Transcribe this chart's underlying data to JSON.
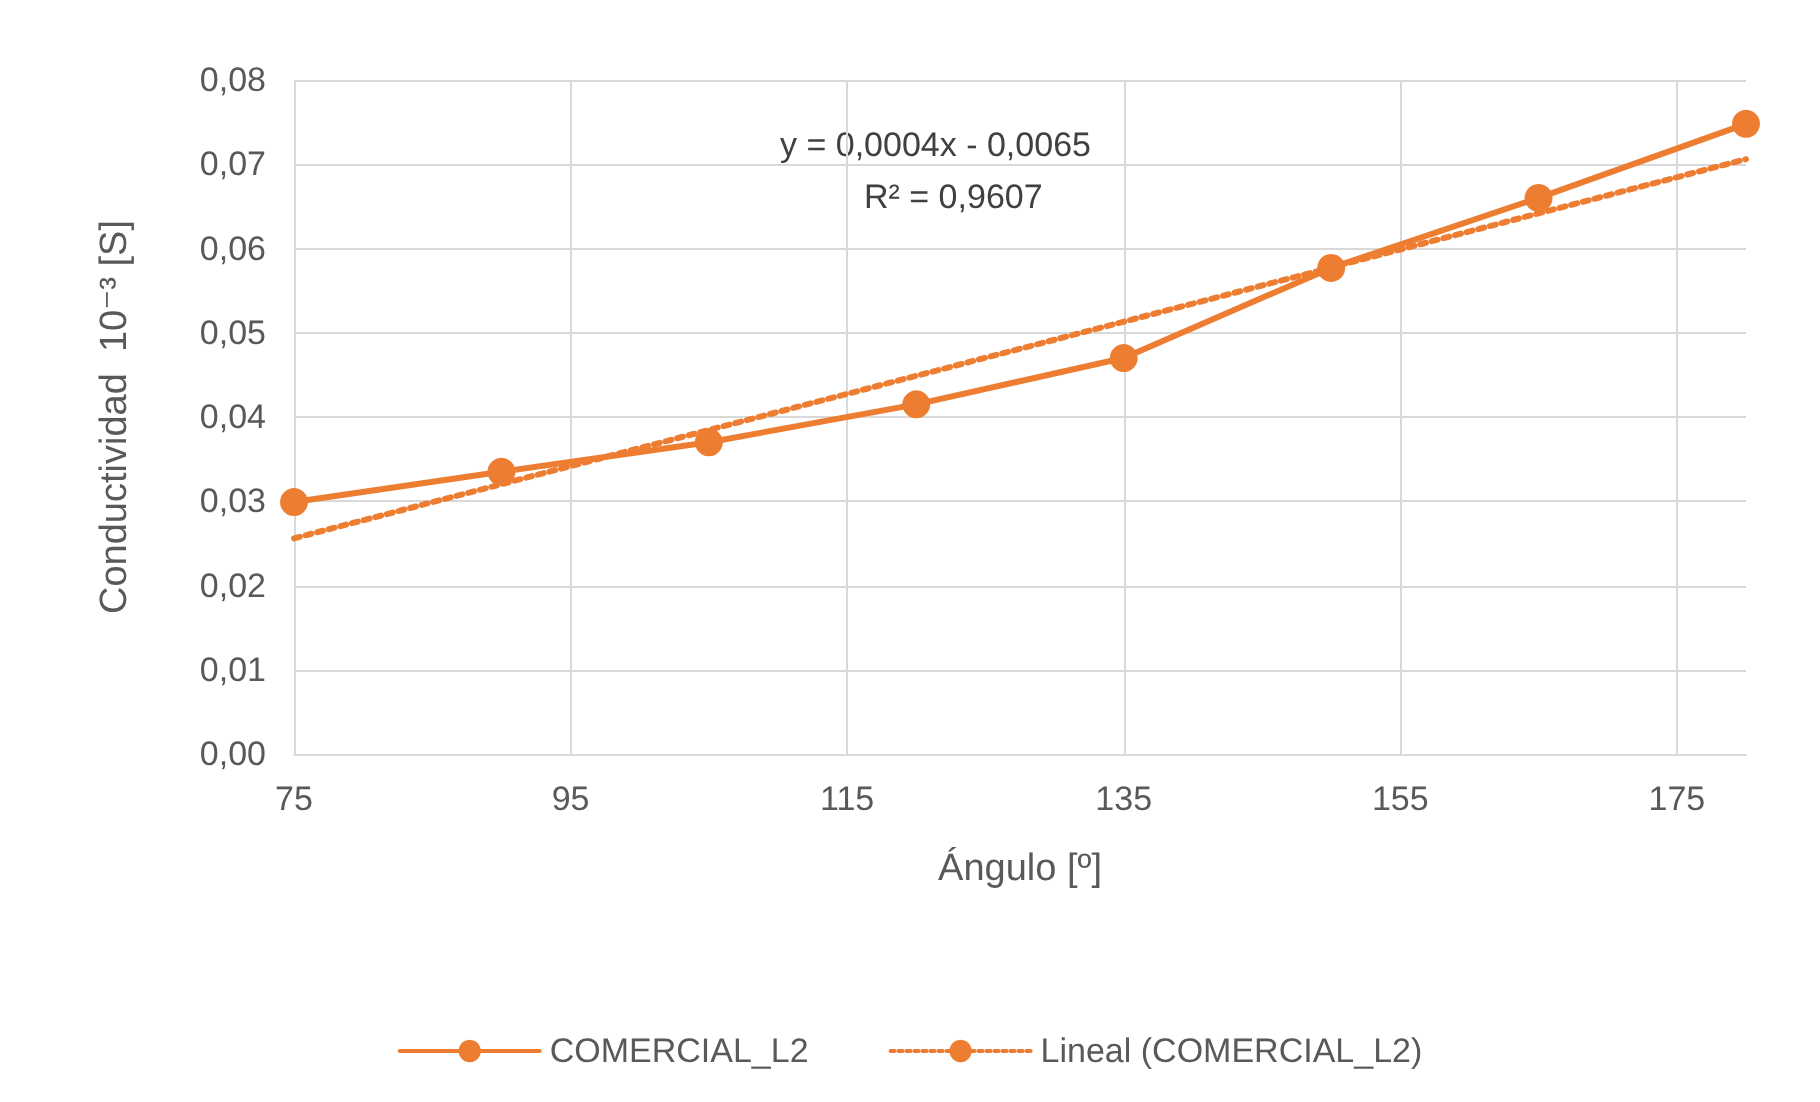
{
  "chart_data": {
    "type": "line",
    "xlabel": "Ángulo [º]",
    "ylabel": "Conductividad  10⁻³ [S]",
    "xlim": [
      75,
      180
    ],
    "xticks": [
      75,
      95,
      115,
      135,
      155,
      175
    ],
    "ylim": [
      0,
      0.08
    ],
    "yticks": [
      {
        "value": 0,
        "label": "0,00"
      },
      {
        "value": 0.01,
        "label": "0,01"
      },
      {
        "value": 0.02,
        "label": "0,02"
      },
      {
        "value": 0.03,
        "label": "0,03"
      },
      {
        "value": 0.04,
        "label": "0,04"
      },
      {
        "value": 0.05,
        "label": "0,05"
      },
      {
        "value": 0.06,
        "label": "0,06"
      },
      {
        "value": 0.07,
        "label": "0,07"
      },
      {
        "value": 0.08,
        "label": "0,08"
      }
    ],
    "series": [
      {
        "name": "COMERCIAL_L2",
        "color": "#ed7d31",
        "x": [
          75,
          90,
          105,
          120,
          135,
          150,
          165,
          180
        ],
        "values": [
          0.0299,
          0.0335,
          0.037,
          0.0415,
          0.047,
          0.0577,
          0.066,
          0.0748
        ],
        "marker": "circle",
        "line_style": "solid"
      },
      {
        "name": "Lineal (COMERCIAL_L2)",
        "type": "line",
        "color": "#ed7d31",
        "x": [
          75,
          180
        ],
        "values": [
          0.0256,
          0.0706
        ],
        "marker": "none",
        "line_style": "dotted"
      }
    ],
    "annotations": [
      "y = 0,0004x - 0,0065",
      "R² = 0,9607"
    ],
    "grid": true,
    "legend": "bottom"
  }
}
